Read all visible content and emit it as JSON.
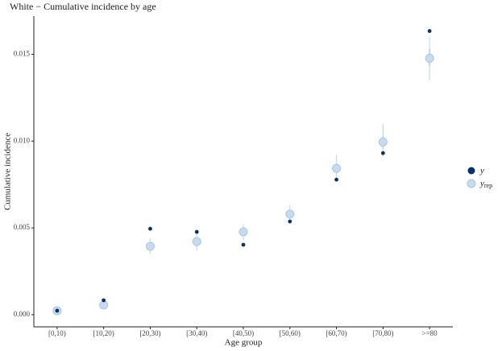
{
  "chart_data": {
    "type": "ppc-intervals",
    "title": "White − Cumulative incidence by age",
    "xlabel": "Age group",
    "ylabel": "Cumulative incidence",
    "categories": [
      "[0,10)",
      "[10,20)",
      "[20,30)",
      "[30,40)",
      "[40,50)",
      "[50,60)",
      "[60,70)",
      "[70,80)",
      ">=80"
    ],
    "ylim": [
      -0.0007,
      0.0172
    ],
    "yticks": [
      {
        "value": 0,
        "label": "0.000"
      },
      {
        "value": 0.005,
        "label": "0.005"
      },
      {
        "value": 0.01,
        "label": "0.010"
      },
      {
        "value": 0.015,
        "label": "0.015"
      }
    ],
    "series": [
      {
        "name": "y",
        "color": "#08306b",
        "values": [
          0.00023,
          0.00083,
          0.00495,
          0.00477,
          0.00403,
          0.00537,
          0.00778,
          0.00931,
          0.01634
        ]
      },
      {
        "name": "yrep",
        "color": "#c6dbef",
        "values": [
          0.00023,
          0.00056,
          0.00394,
          0.00421,
          0.00477,
          0.00579,
          0.00843,
          0.00995,
          0.01477
        ],
        "outer_low": [
          0.00015,
          0.0004,
          0.0035,
          0.0037,
          0.0043,
          0.0053,
          0.0078,
          0.0091,
          0.0135
        ],
        "outer_high": [
          0.0003,
          0.0008,
          0.0044,
          0.0047,
          0.0052,
          0.0063,
          0.0092,
          0.011,
          0.016
        ],
        "inner_low": [
          0.0002,
          0.0005,
          0.0037,
          0.004,
          0.0046,
          0.0056,
          0.0082,
          0.0096,
          0.0143
        ],
        "inner_high": [
          0.00026,
          0.00065,
          0.0041,
          0.0044,
          0.0049,
          0.006,
          0.0087,
          0.0103,
          0.0153
        ]
      }
    ]
  }
}
